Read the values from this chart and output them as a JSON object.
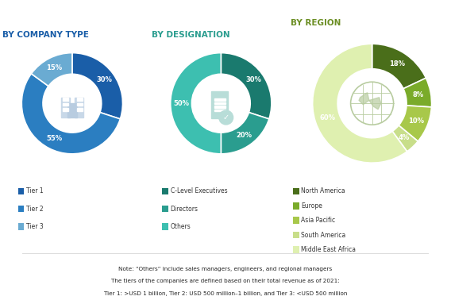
{
  "chart1": {
    "title": "BY COMPANY TYPE",
    "title_color": "#1a5ea8",
    "values": [
      30,
      55,
      15
    ],
    "labels": [
      "30%",
      "55%",
      "15%"
    ],
    "colors": [
      "#1a5ea8",
      "#2b7ec1",
      "#6aabd2"
    ],
    "legend": [
      "Tier 1",
      "Tier 2",
      "Tier 3"
    ],
    "startangle": 90
  },
  "chart2": {
    "title": "BY DESIGNATION",
    "title_color": "#2a9d8f",
    "values": [
      30,
      20,
      50
    ],
    "labels": [
      "30%",
      "20%",
      "50%"
    ],
    "colors": [
      "#1a7a6e",
      "#2a9d8f",
      "#3dbfb0"
    ],
    "legend": [
      "C-Level Executives",
      "Directors",
      "Others"
    ],
    "startangle": 90
  },
  "chart3": {
    "title": "BY REGION",
    "title_color": "#6b8e23",
    "values": [
      18,
      8,
      10,
      4,
      60
    ],
    "labels": [
      "18%",
      "8%",
      "10%",
      "4%",
      "60%"
    ],
    "colors": [
      "#4a6e1a",
      "#7aab2a",
      "#a8c84a",
      "#c8de8a",
      "#dff0b0"
    ],
    "legend": [
      "North America",
      "Europe",
      "Asia Pacific",
      "South America",
      "Middle East Africa"
    ],
    "startangle": 90
  },
  "note_lines": [
    "Note: “Others” include sales managers, engineers, and regional managers",
    "The tiers of the companies are defined based on their total revenue as of 2021:",
    "Tier 1: >USD 1 billion, Tier 2: USD 500 million–1 billion, and Tier 3: <USD 500 million"
  ],
  "background_color": "#ffffff"
}
